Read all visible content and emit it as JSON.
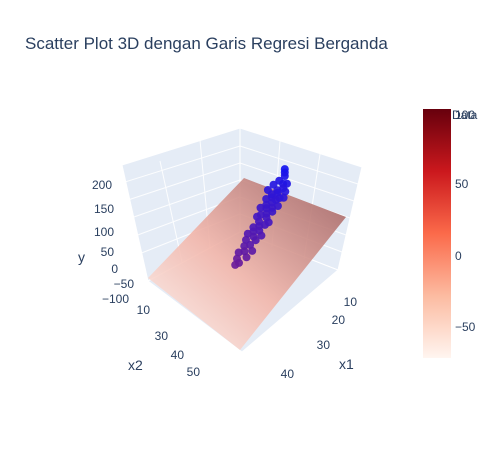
{
  "chart_data": {
    "type": "scatter3d",
    "title": "Scatter Plot 3D dengan Garis Regresi Berganda",
    "axes": {
      "x": {
        "label": "x1",
        "ticks": [
          "10",
          "20",
          "30",
          "40"
        ],
        "range": [
          0,
          50
        ]
      },
      "y": {
        "label": "x2",
        "ticks": [
          "10",
          "30",
          "40",
          "50"
        ],
        "range": [
          0,
          50
        ]
      },
      "z": {
        "label": "y",
        "ticks": [
          "−100",
          "−50",
          "0",
          "50",
          "100",
          "150",
          "200"
        ],
        "range": [
          -100,
          200
        ]
      }
    },
    "colorbar": {
      "title": "Data",
      "colorscale": "Reds",
      "ticks": [
        "−50",
        "0",
        "50",
        "100"
      ],
      "range": [
        -75,
        100
      ]
    },
    "colors": {
      "low_point": "#1414f0",
      "high_point": "#6a1b9a",
      "plane_low": "#fdece3",
      "plane_high": "#a4524f"
    },
    "points": [
      [
        36,
        14,
        200
      ],
      [
        36,
        14,
        190
      ],
      [
        36,
        14,
        180
      ],
      [
        35,
        16,
        170
      ],
      [
        37,
        16,
        165
      ],
      [
        39,
        16,
        170
      ],
      [
        38,
        17,
        158
      ],
      [
        34,
        18,
        162
      ],
      [
        36,
        18,
        150
      ],
      [
        40,
        18,
        155
      ],
      [
        37,
        19,
        148
      ],
      [
        33,
        20,
        150
      ],
      [
        35,
        20,
        142
      ],
      [
        39,
        20,
        140
      ],
      [
        41,
        20,
        145
      ],
      [
        36,
        21,
        138
      ],
      [
        38,
        21,
        135
      ],
      [
        34,
        22,
        132
      ],
      [
        37,
        22,
        128
      ],
      [
        40,
        22,
        125
      ],
      [
        35,
        23,
        120
      ],
      [
        38,
        23,
        118
      ],
      [
        36,
        24,
        115
      ],
      [
        39,
        24,
        112
      ],
      [
        33,
        24,
        110
      ],
      [
        37,
        25,
        105
      ],
      [
        35,
        26,
        100
      ],
      [
        38,
        26,
        98
      ],
      [
        34,
        27,
        95
      ],
      [
        40,
        27,
        92
      ],
      [
        36,
        28,
        88
      ],
      [
        39,
        28,
        85
      ],
      [
        37,
        29,
        80
      ],
      [
        35,
        30,
        75
      ],
      [
        38,
        30,
        72
      ],
      [
        36,
        31,
        68
      ],
      [
        40,
        31,
        65
      ],
      [
        34,
        32,
        60
      ],
      [
        37,
        32,
        58
      ],
      [
        39,
        33,
        55
      ],
      [
        35,
        34,
        50
      ],
      [
        38,
        35,
        45
      ],
      [
        36,
        36,
        40
      ],
      [
        40,
        36,
        35
      ],
      [
        37,
        37,
        30
      ],
      [
        35,
        38,
        25
      ],
      [
        39,
        38,
        20
      ],
      [
        36,
        40,
        15
      ],
      [
        38,
        41,
        10
      ],
      [
        37,
        42,
        5
      ]
    ]
  }
}
